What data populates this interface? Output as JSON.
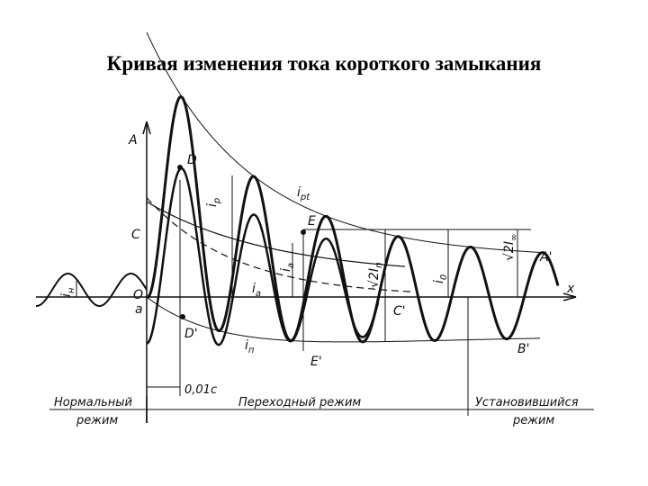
{
  "title": "Кривая изменения тока короткого замыкания",
  "diagram": {
    "points": [
      "A",
      "D",
      "C",
      "O",
      "a",
      "D'",
      "E",
      "E'",
      "A'",
      "C'",
      "B'",
      "x"
    ],
    "currents": [
      {
        "main": "i",
        "sub": "pt"
      },
      {
        "main": "i",
        "sub": "p"
      },
      {
        "main": "i",
        "sub": "a"
      },
      {
        "main": "i",
        "sub": "п"
      },
      {
        "main": "√2I",
        "sub": "п"
      },
      {
        "main": "i",
        "sub": "0"
      },
      {
        "main": "√2I",
        "sub": "∞"
      },
      {
        "main": "i",
        "sub": "н"
      },
      {
        "main": "i",
        "sub": "a"
      }
    ],
    "time_step": "0,01c",
    "regimes": [
      {
        "lines": [
          "Нормальный",
          "режим"
        ]
      },
      {
        "lines": [
          "Переходный режим"
        ]
      },
      {
        "lines": [
          "Установившийся",
          "режим"
        ]
      }
    ]
  }
}
